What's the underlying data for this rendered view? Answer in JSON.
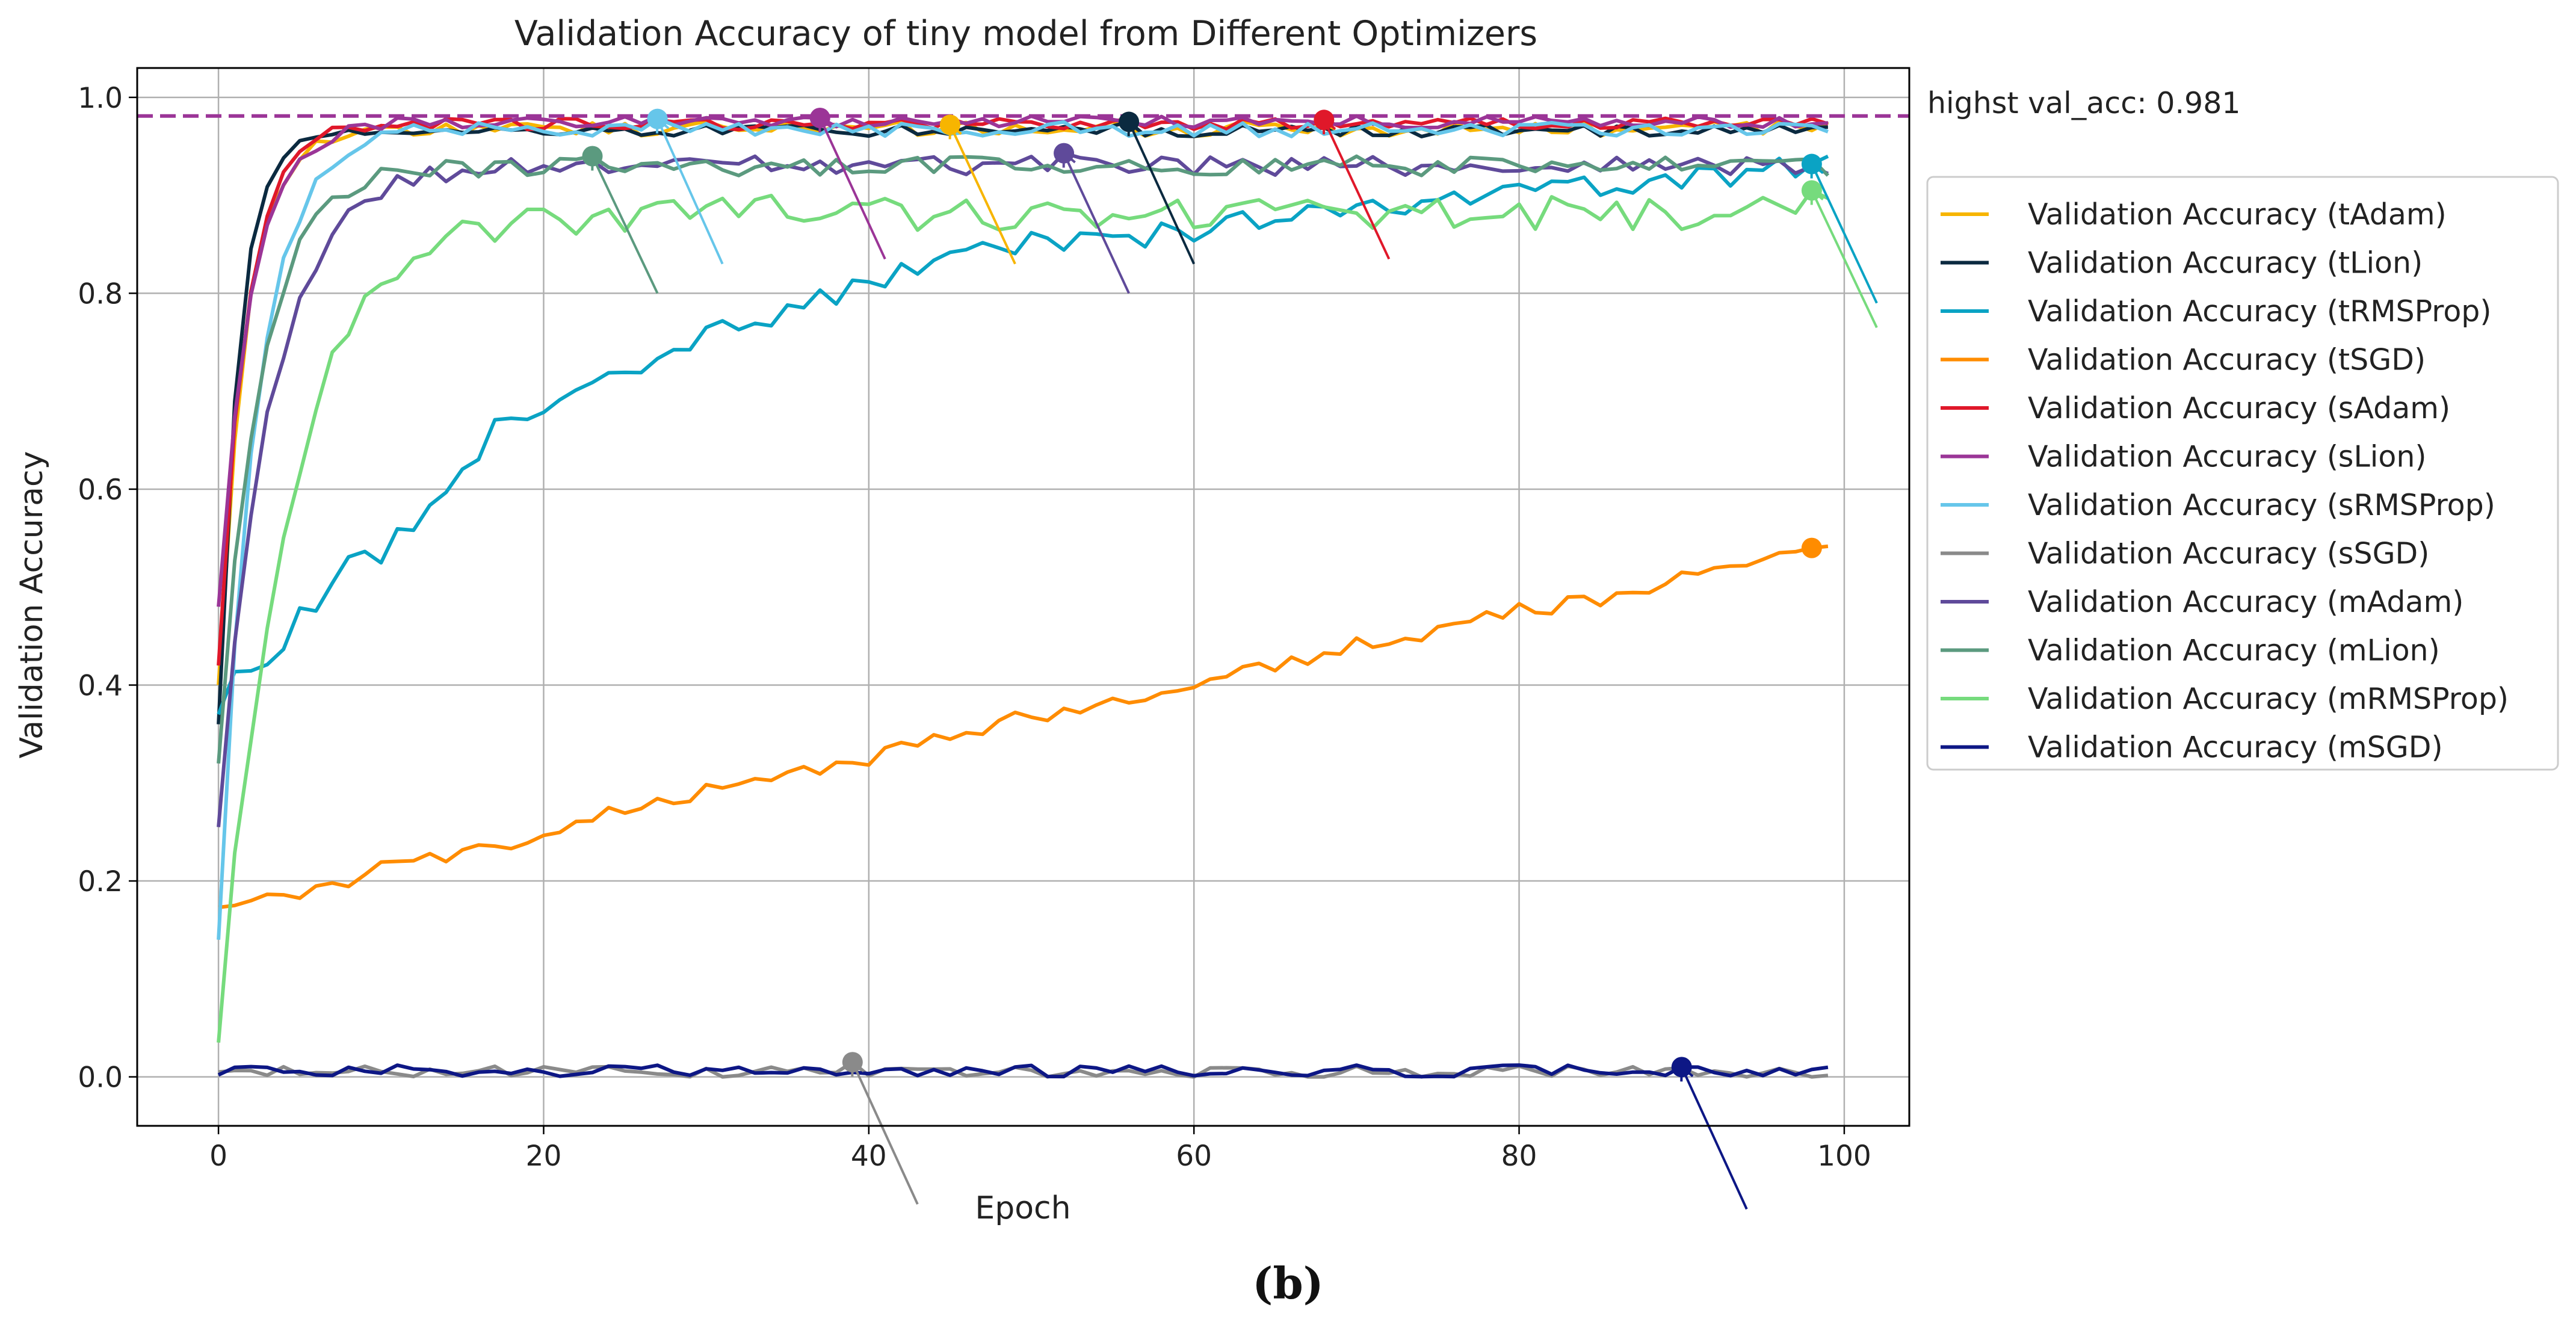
{
  "chart_data": {
    "type": "line",
    "title": "Validation Accuracy of tiny model from Different Optimizers",
    "xlabel": "Epoch",
    "ylabel": "Validation Accuracy",
    "xlim": [
      -5,
      104
    ],
    "ylim": [
      -0.05,
      1.03
    ],
    "xticks": [
      0,
      20,
      40,
      60,
      80,
      100
    ],
    "yticks": [
      0.0,
      0.2,
      0.4,
      0.6,
      0.8,
      1.0
    ],
    "grid": true,
    "legend_position": "right-outside",
    "reference_line": {
      "y": 0.981,
      "label": "highst val_acc: 0.981",
      "color": "#9b3597"
    },
    "series": [
      {
        "name": "Validation Accuracy (tAdam)",
        "color": "#f7b500",
        "start": 0.4,
        "plateau": 0.968,
        "k": 0.6,
        "noise": 0.004,
        "best_epoch": 45,
        "best_val": 0.972,
        "arrow_to": [
          49,
          0.83
        ]
      },
      {
        "name": "Validation Accuracy (tLion)",
        "color": "#0b2a40",
        "start": 0.36,
        "plateau": 0.966,
        "k": 0.8,
        "noise": 0.003,
        "best_epoch": 56,
        "best_val": 0.975,
        "arrow_to": [
          60,
          0.83
        ]
      },
      {
        "name": "Validation Accuracy (tRMSProp)",
        "color": "#0aa3c4",
        "points": [
          [
            0,
            0.37
          ],
          [
            1,
            0.42
          ],
          [
            3,
            0.41
          ],
          [
            5,
            0.47
          ],
          [
            8,
            0.52
          ],
          [
            10,
            0.535
          ],
          [
            12,
            0.56
          ],
          [
            14,
            0.6
          ],
          [
            16,
            0.64
          ],
          [
            17,
            0.68
          ],
          [
            20,
            0.67
          ],
          [
            22,
            0.7
          ],
          [
            25,
            0.72
          ],
          [
            28,
            0.74
          ],
          [
            32,
            0.77
          ],
          [
            35,
            0.78
          ],
          [
            38,
            0.8
          ],
          [
            40,
            0.81
          ],
          [
            42,
            0.82
          ],
          [
            46,
            0.84
          ],
          [
            50,
            0.85
          ],
          [
            55,
            0.85
          ],
          [
            58,
            0.86
          ],
          [
            62,
            0.87
          ],
          [
            66,
            0.88
          ],
          [
            70,
            0.89
          ],
          [
            75,
            0.895
          ],
          [
            80,
            0.905
          ],
          [
            85,
            0.91
          ],
          [
            90,
            0.915
          ],
          [
            95,
            0.925
          ],
          [
            99,
            0.935
          ]
        ],
        "noise": 0.006,
        "best_epoch": 98,
        "best_val": 0.932,
        "arrow_to": [
          102,
          0.79
        ]
      },
      {
        "name": "Validation Accuracy (tSGD)",
        "color": "#ff8c00",
        "points": [
          [
            0,
            0.173
          ],
          [
            2,
            0.183
          ],
          [
            5,
            0.188
          ],
          [
            8,
            0.198
          ],
          [
            10,
            0.215
          ],
          [
            13,
            0.222
          ],
          [
            16,
            0.232
          ],
          [
            20,
            0.247
          ],
          [
            23,
            0.262
          ],
          [
            26,
            0.278
          ],
          [
            30,
            0.292
          ],
          [
            33,
            0.3
          ],
          [
            36,
            0.31
          ],
          [
            40,
            0.325
          ],
          [
            43,
            0.34
          ],
          [
            46,
            0.35
          ],
          [
            50,
            0.37
          ],
          [
            53,
            0.375
          ],
          [
            56,
            0.385
          ],
          [
            60,
            0.405
          ],
          [
            63,
            0.412
          ],
          [
            66,
            0.425
          ],
          [
            70,
            0.44
          ],
          [
            73,
            0.45
          ],
          [
            76,
            0.46
          ],
          [
            80,
            0.475
          ],
          [
            83,
            0.482
          ],
          [
            86,
            0.49
          ],
          [
            89,
            0.505
          ],
          [
            92,
            0.515
          ],
          [
            95,
            0.525
          ],
          [
            99,
            0.54
          ]
        ],
        "noise": 0.004,
        "best_epoch": 98,
        "best_val": 0.54
      },
      {
        "name": "Validation Accuracy (sAdam)",
        "color": "#e0182a",
        "start": 0.42,
        "plateau": 0.973,
        "k": 0.6,
        "noise": 0.003,
        "best_epoch": 68,
        "best_val": 0.977,
        "arrow_to": [
          72,
          0.835
        ]
      },
      {
        "name": "Validation Accuracy (sLion)",
        "color": "#9b3597",
        "start": 0.48,
        "plateau": 0.975,
        "k": 0.5,
        "noise": 0.003,
        "best_epoch": 37,
        "best_val": 0.979,
        "arrow_to": [
          41,
          0.835
        ]
      },
      {
        "name": "Validation Accuracy (sRMSProp)",
        "color": "#66c6ea",
        "start": 0.14,
        "plateau": 0.968,
        "k": 0.45,
        "noise": 0.004,
        "best_epoch": 27,
        "best_val": 0.978,
        "arrow_to": [
          31,
          0.83
        ]
      },
      {
        "name": "Validation Accuracy (sSGD)",
        "color": "#8a8a8a",
        "start": 0.005,
        "plateau": 0.005,
        "k": 1.0,
        "noise": 0.003,
        "best_epoch": 39,
        "best_val": 0.015,
        "arrow_to": [
          43,
          -0.13
        ]
      },
      {
        "name": "Validation Accuracy (mAdam)",
        "color": "#5f4a9a",
        "start": 0.255,
        "plateau": 0.93,
        "k": 0.32,
        "noise": 0.005,
        "best_epoch": 52,
        "best_val": 0.943,
        "arrow_to": [
          56,
          0.8
        ]
      },
      {
        "name": "Validation Accuracy (mLion)",
        "color": "#5b9a7f",
        "start": 0.32,
        "plateau": 0.93,
        "k": 0.4,
        "noise": 0.005,
        "best_epoch": 23,
        "best_val": 0.94,
        "arrow_to": [
          27,
          0.8
        ]
      },
      {
        "name": "Validation Accuracy (mRMSProp)",
        "color": "#76db7d",
        "start": 0.035,
        "plateau": 0.882,
        "k": 0.24,
        "noise": 0.009,
        "best_epoch": 98,
        "best_val": 0.905,
        "arrow_to": [
          102,
          0.765
        ]
      },
      {
        "name": "Validation Accuracy (mSGD)",
        "color": "#0d1785",
        "start": 0.002,
        "plateau": 0.006,
        "k": 1.0,
        "noise": 0.003,
        "best_epoch": 90,
        "best_val": 0.01,
        "arrow_to": [
          94,
          -0.135
        ]
      }
    ]
  },
  "caption": "(b)"
}
